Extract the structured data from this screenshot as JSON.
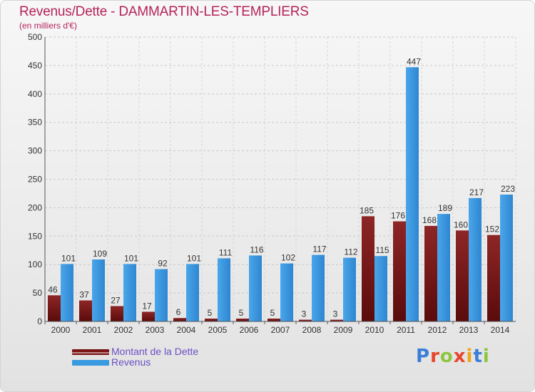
{
  "header": {
    "title": "Revenus/Dette - DAMMARTIN-LES-TEMPLIERS",
    "subtitle": "(en milliers d'€)"
  },
  "chart_data": {
    "type": "bar",
    "title": "Revenus/Dette - DAMMARTIN-LES-TEMPLIERS",
    "subtitle": "(en milliers d'€)",
    "xlabel": "",
    "ylabel": "",
    "categories": [
      "2000",
      "2001",
      "2002",
      "2003",
      "2004",
      "2005",
      "2006",
      "2007",
      "2008",
      "2009",
      "2010",
      "2011",
      "2012",
      "2013",
      "2014"
    ],
    "series": [
      {
        "name": "Montant de la Dette",
        "color": "#8b1a1a",
        "values": [
          46,
          37,
          27,
          17,
          6,
          5,
          5,
          5,
          3,
          3,
          185,
          176,
          168,
          160,
          152
        ]
      },
      {
        "name": "Revenus",
        "color": "#3a9ae0",
        "values": [
          101,
          109,
          101,
          92,
          101,
          111,
          116,
          102,
          117,
          112,
          115,
          447,
          189,
          217,
          223
        ]
      }
    ],
    "ylim": [
      0,
      500
    ],
    "yticks": [
      0,
      50,
      100,
      150,
      200,
      250,
      300,
      350,
      400,
      450,
      500
    ],
    "grid": true,
    "legend": "bottom-left"
  },
  "legend": {
    "items": [
      {
        "label": "Montant de la Dette",
        "color": "#7a1414"
      },
      {
        "label": "Revenus",
        "color": "#3a9ae0"
      }
    ]
  },
  "logo": {
    "letters": [
      "P",
      "r",
      "o",
      "x",
      "i",
      "t",
      "i"
    ],
    "colors": [
      "#3a7ed8",
      "#e8452b",
      "#8cc63e",
      "#e8452b",
      "#f2a51c",
      "#3a7ed8",
      "#8cc63e"
    ]
  }
}
